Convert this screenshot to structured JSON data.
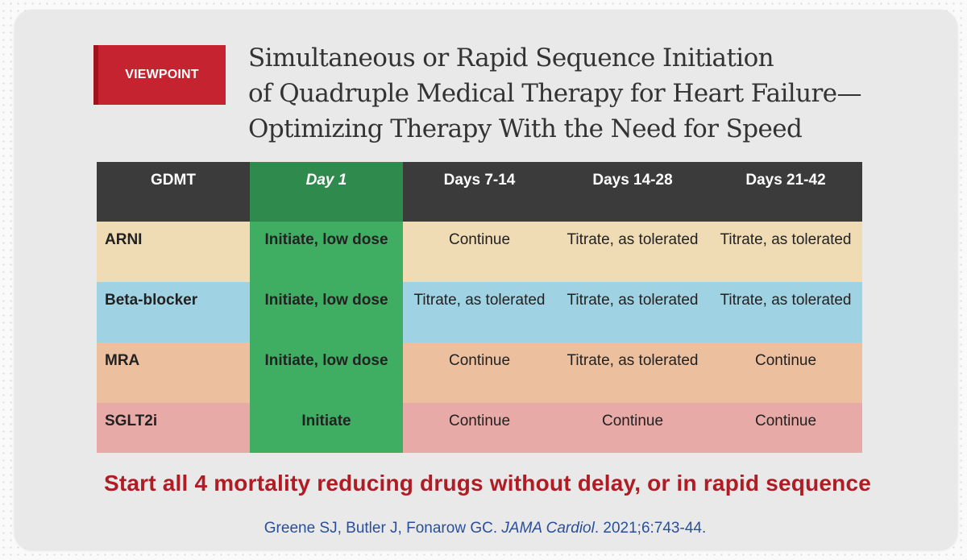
{
  "badge": "VIEWPOINT",
  "title_lines": [
    "Simultaneous or Rapid Sequence Initiation",
    "of Quadruple Medical Therapy for Heart Failure—",
    "Optimizing Therapy With the Need for Speed"
  ],
  "table": {
    "headers": [
      "GDMT",
      "Day 1",
      "Days 7-14",
      "Days 14-28",
      "Days 21-42"
    ],
    "rows": [
      [
        "ARNI",
        "Initiate, low dose",
        "Continue",
        "Titrate, as tolerated",
        "Titrate, as tolerated"
      ],
      [
        "Beta-blocker",
        "Initiate, low dose",
        "Titrate, as tolerated",
        "Titrate, as tolerated",
        "Titrate, as tolerated"
      ],
      [
        "MRA",
        "Initiate, low dose",
        "Continue",
        "Titrate, as tolerated",
        "Continue"
      ],
      [
        "SGLT2i",
        "Initiate",
        "Continue",
        "Continue",
        "Continue"
      ]
    ]
  },
  "tagline": "Start all 4 mortality reducing drugs without delay, or in rapid sequence",
  "citation": {
    "authors": "Greene SJ, Butler J, Fonarow GC. ",
    "journal": "JAMA Cardiol",
    "details": ". 2021;6:743-44."
  },
  "colors": {
    "badge": "#c5232f",
    "header": "#3b3b3b",
    "day1_header": "#2f8a4e",
    "day1_column": "#3fae62",
    "row_arni": "#f0dcb4",
    "row_beta_blocker": "#9fd3e4",
    "row_mra": "#ecc09f",
    "row_sglt2i": "#e8aaa7",
    "tagline": "#b01c24",
    "citation": "#2a4f9a"
  }
}
